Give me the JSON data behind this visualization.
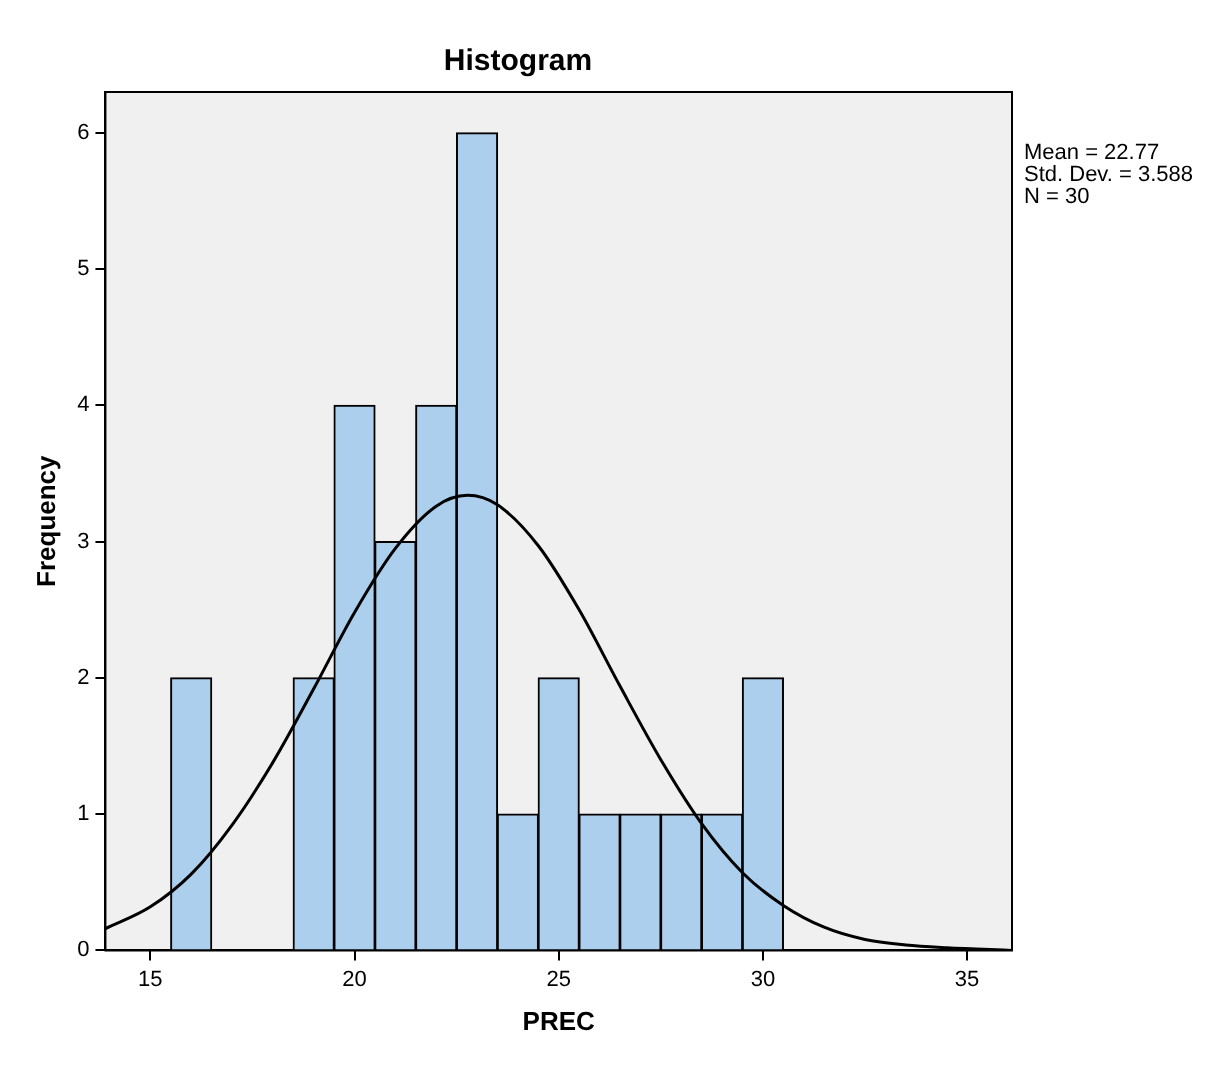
{
  "chart_data": {
    "type": "histogram",
    "title": "Histogram",
    "xlabel": "PREC",
    "ylabel": "Frequency",
    "bins": [
      15.5,
      16.5,
      17.5,
      18.5,
      19.5,
      20.5,
      21.5,
      22.5,
      23.5,
      24.5,
      25.5,
      26.5,
      27.5,
      28.5,
      29.5,
      30.5
    ],
    "values": [
      2,
      0,
      0,
      2,
      4,
      3,
      4,
      6,
      1,
      2,
      1,
      1,
      1,
      1,
      2
    ],
    "color": "#abcfed",
    "series": [
      {
        "type": "line",
        "color": "#000000",
        "x": [
          13.9,
          15,
          16,
          17,
          18,
          19,
          20,
          21,
          22,
          22.77,
          23.5,
          24.5,
          25.5,
          26.5,
          27.5,
          28.5,
          29.5,
          30.5,
          31.5,
          32.5,
          33.5,
          34.5,
          36.1
        ],
        "values": [
          0.16,
          0.32,
          0.56,
          0.92,
          1.38,
          1.92,
          2.48,
          2.95,
          3.26,
          3.34,
          3.27,
          2.97,
          2.5,
          1.94,
          1.4,
          0.93,
          0.57,
          0.33,
          0.17,
          0.08,
          0.04,
          0.02,
          0
        ]
      }
    ],
    "xlim": [
      13.9,
      36.1
    ],
    "xticks": [
      15,
      20,
      25,
      30,
      35
    ],
    "ylim": [
      0,
      6.3
    ],
    "yticks": [
      0,
      1,
      2,
      3,
      4,
      5,
      6
    ],
    "annotations": [
      "Mean = 22.77",
      "Std. Dev. = 3.588",
      "N = 30"
    ],
    "grid": false,
    "legend": false
  }
}
